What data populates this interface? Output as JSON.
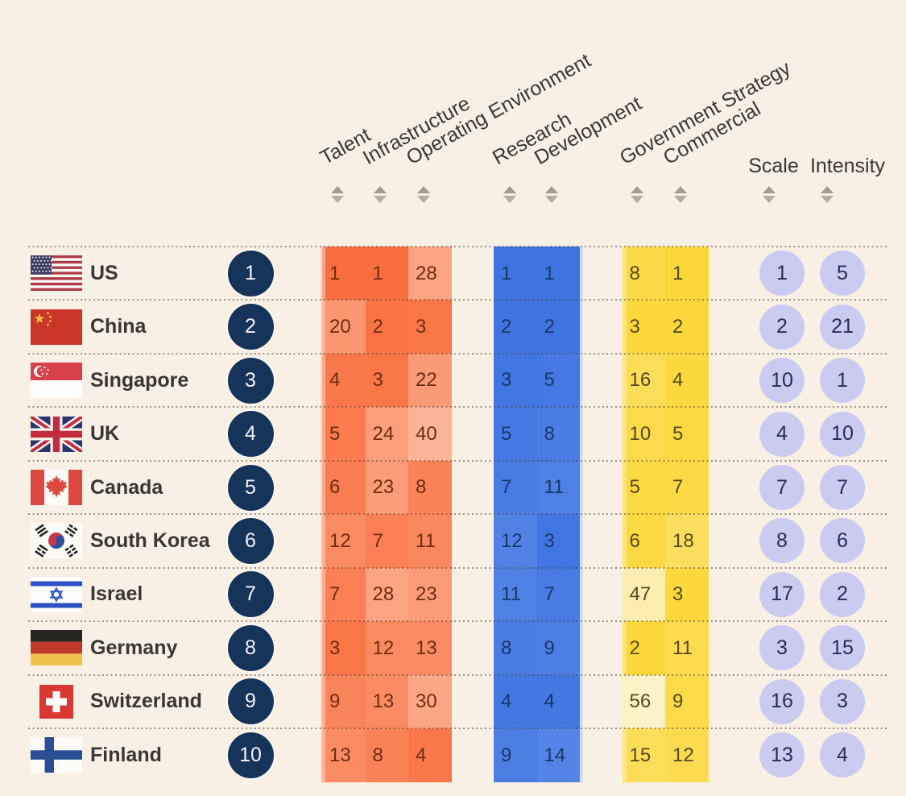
{
  "title": "AI index country ranking heatmap table",
  "colors": {
    "background": "#f8f0e4",
    "dotted_line": "#42382e",
    "header_text": "#3b3733",
    "country_text": "#3a3633",
    "sort_icon_up": "#9d948b",
    "sort_icon_down": "#b3a99f",
    "rank_circle_bg": "#16335a",
    "rank_circle_text": "#f3f1fb",
    "scale_circle_bg": "#cbcbf1",
    "scale_circle_text": "#252c55",
    "orange_strong": "#f96e3e",
    "orange_light": "#fccab0",
    "orange_text": "#6f2c10",
    "blue_strong": "#3e73e1",
    "blue_light": "#9db9f2",
    "blue_text": "#17376b",
    "yellow_strong": "#fcd73a",
    "yellow_light": "#fdf2c8",
    "yellow_text": "#564a1e"
  },
  "chart_data": {
    "type": "heatmap-table",
    "title": "",
    "legend_position": "none",
    "grid": "dotted-row-separators",
    "value_scale": {
      "min": 1,
      "max": 56,
      "note": "lower rank = stronger colour"
    },
    "column_groups": [
      {
        "name": "orange",
        "columns": [
          "Talent",
          "Infrastructure",
          "Operating Environment"
        ]
      },
      {
        "name": "blue",
        "columns": [
          "Research",
          "Development"
        ]
      },
      {
        "name": "yellow",
        "columns": [
          "Government Strategy",
          "Commercial"
        ]
      },
      {
        "name": "circles",
        "columns": [
          "Scale",
          "Intensity"
        ]
      }
    ],
    "columns": [
      {
        "label": "Talent"
      },
      {
        "label": "Infrastructure"
      },
      {
        "label": "Operating Environment"
      },
      {
        "label": "Research"
      },
      {
        "label": "Development"
      },
      {
        "label": "Government Strategy"
      },
      {
        "label": "Commercial"
      },
      {
        "label": "Scale"
      },
      {
        "label": "Intensity"
      }
    ],
    "rows": [
      {
        "country": "US",
        "flag": "us",
        "rank": "1",
        "values": [
          1,
          1,
          28,
          1,
          1,
          8,
          1,
          1,
          5
        ]
      },
      {
        "country": "China",
        "flag": "cn",
        "rank": "2",
        "values": [
          20,
          2,
          3,
          2,
          2,
          3,
          2,
          2,
          21
        ]
      },
      {
        "country": "Singapore",
        "flag": "sg",
        "rank": "3",
        "values": [
          4,
          3,
          22,
          3,
          5,
          16,
          4,
          10,
          1
        ]
      },
      {
        "country": "UK",
        "flag": "uk",
        "rank": "4",
        "values": [
          5,
          24,
          40,
          5,
          8,
          10,
          5,
          4,
          10
        ]
      },
      {
        "country": "Canada",
        "flag": "ca",
        "rank": "5",
        "values": [
          6,
          23,
          8,
          7,
          11,
          5,
          7,
          7,
          7
        ]
      },
      {
        "country": "South Korea",
        "flag": "kr",
        "rank": "6",
        "values": [
          12,
          7,
          11,
          12,
          3,
          6,
          18,
          8,
          6
        ]
      },
      {
        "country": "Israel",
        "flag": "il",
        "rank": "7",
        "values": [
          7,
          28,
          23,
          11,
          7,
          47,
          3,
          17,
          2
        ]
      },
      {
        "country": "Germany",
        "flag": "de",
        "rank": "8",
        "values": [
          3,
          12,
          13,
          8,
          9,
          2,
          11,
          3,
          15
        ]
      },
      {
        "country": "Switzerland",
        "flag": "ch",
        "rank": "9",
        "values": [
          9,
          13,
          30,
          4,
          4,
          56,
          9,
          16,
          3
        ]
      },
      {
        "country": "Finland",
        "flag": "fi",
        "rank": "10",
        "values": [
          13,
          8,
          4,
          9,
          14,
          15,
          12,
          13,
          4
        ]
      }
    ]
  }
}
